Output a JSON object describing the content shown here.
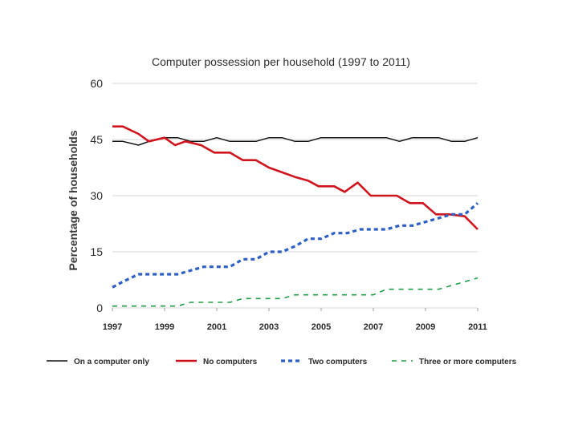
{
  "chart_data": {
    "type": "line",
    "title": "Computer possession per household (1997 to 2011)",
    "xlabel": "",
    "ylabel": "Percentage of households",
    "xlim": [
      1997,
      2011
    ],
    "ylim": [
      0,
      60
    ],
    "x_ticks": [
      "1997",
      "1999",
      "2001",
      "2003",
      "2005",
      "2007",
      "2009",
      "2011"
    ],
    "y_ticks": [
      "0",
      "15",
      "30",
      "45",
      "60"
    ],
    "grid": "horizontal",
    "legend_position": "bottom",
    "series": [
      {
        "name": "On a computer only",
        "color": "#111111",
        "style": "solid",
        "x": [
          1997,
          1997.4,
          1998,
          1998.4,
          1999,
          1999.5,
          2000,
          2000.5,
          2001,
          2001.5,
          2002,
          2002.5,
          2003,
          2003.5,
          2004,
          2004.5,
          2005,
          2005.5,
          2006,
          2006.5,
          2007,
          2007.5,
          2008,
          2008.5,
          2009,
          2009.5,
          2010,
          2010.5,
          2011
        ],
        "values": [
          44.5,
          44.5,
          43.5,
          44.5,
          45.5,
          45.5,
          44.5,
          44.5,
          45.5,
          44.5,
          44.5,
          44.5,
          45.5,
          45.5,
          44.5,
          44.5,
          45.5,
          45.5,
          45.5,
          45.5,
          45.5,
          45.5,
          44.5,
          45.5,
          45.5,
          45.5,
          44.5,
          44.5,
          45.5
        ]
      },
      {
        "name": "No computers",
        "color": "#d0141e",
        "style": "solid",
        "x": [
          1997,
          1997.4,
          1998,
          1998.4,
          1999,
          1999.4,
          1999.8,
          2000.4,
          2000.9,
          2001.5,
          2002,
          2002.5,
          2003,
          2003.6,
          2004,
          2004.5,
          2004.9,
          2005.5,
          2005.9,
          2006.4,
          2006.9,
          2007.4,
          2007.9,
          2008.4,
          2008.9,
          2009.4,
          2009.9,
          2010.5,
          2011
        ],
        "values": [
          48.5,
          48.5,
          46.5,
          44.5,
          45.5,
          43.5,
          44.5,
          43.5,
          41.5,
          41.5,
          39.5,
          39.5,
          37.5,
          36,
          35,
          34,
          32.5,
          32.5,
          31,
          33.5,
          30,
          30,
          30,
          28,
          28,
          25,
          25,
          24.5,
          21
        ]
      },
      {
        "name": "Two computers",
        "color": "#2e5fc4",
        "style": "dotted",
        "x": [
          1997,
          1997.4,
          1998,
          1998.5,
          1999,
          1999.5,
          2000,
          2000.5,
          2001,
          2001.5,
          2002,
          2002.5,
          2003,
          2003.5,
          2004,
          2004.5,
          2005,
          2005.5,
          2006,
          2006.5,
          2007,
          2007.5,
          2008,
          2008.5,
          2009,
          2009.5,
          2010,
          2010.5,
          2011
        ],
        "values": [
          5.5,
          7,
          9,
          9,
          9,
          9,
          10,
          11,
          11,
          11,
          13,
          13,
          15,
          15,
          16.5,
          18.5,
          18.5,
          20,
          20,
          21,
          21,
          21,
          22,
          22,
          23,
          24,
          25,
          25,
          28
        ]
      },
      {
        "name": "Three or more computers",
        "color": "#1e9d47",
        "style": "dashed",
        "x": [
          1997,
          1997.5,
          1998,
          1998.5,
          1999,
          1999.5,
          2000,
          2000.5,
          2001,
          2001.5,
          2002,
          2002.5,
          2003,
          2003.5,
          2004,
          2004.5,
          2005,
          2005.5,
          2006,
          2006.5,
          2007,
          2007.5,
          2008,
          2008.5,
          2009,
          2009.5,
          2010,
          2010.5,
          2011
        ],
        "values": [
          0.5,
          0.5,
          0.5,
          0.5,
          0.5,
          0.5,
          1.5,
          1.5,
          1.5,
          1.5,
          2.5,
          2.5,
          2.5,
          2.5,
          3.5,
          3.5,
          3.5,
          3.5,
          3.5,
          3.5,
          3.5,
          5,
          5,
          5,
          5,
          5,
          6,
          7,
          8
        ]
      }
    ]
  }
}
